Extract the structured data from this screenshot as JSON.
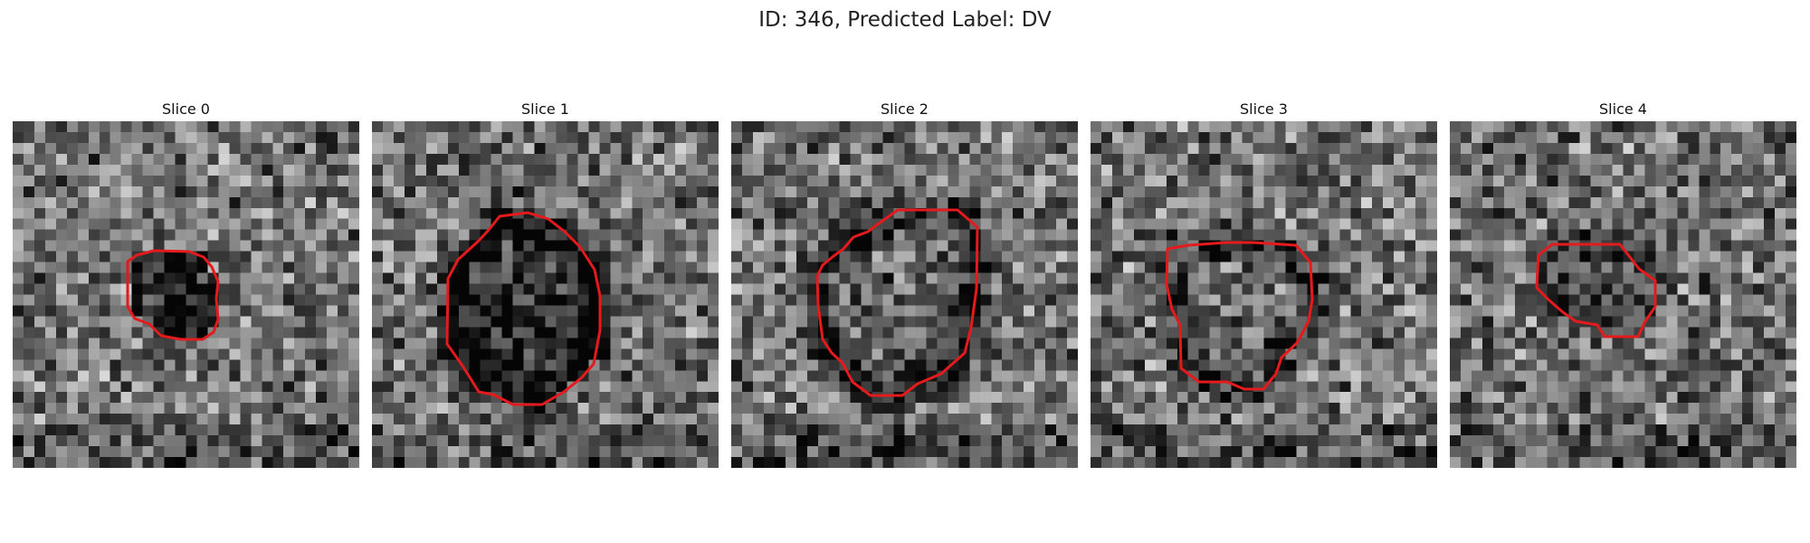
{
  "figure": {
    "title": "ID: 346, Predicted Label: DV",
    "contour_color": "#e41a1c"
  },
  "slices": [
    {
      "title": "Slice 0",
      "seed": 11,
      "dark": 0.35,
      "ring": 0.0
    },
    {
      "title": "Slice 1",
      "seed": 23,
      "dark": 0.3,
      "ring": 0.45
    },
    {
      "title": "Slice 2",
      "seed": 37,
      "dark": 0.05,
      "ring": 0.55
    },
    {
      "title": "Slice 3",
      "seed": 41,
      "dark": 0.05,
      "ring": 0.45
    },
    {
      "title": "Slice 4",
      "seed": 59,
      "dark": 0.1,
      "ring": 0.2
    }
  ]
}
